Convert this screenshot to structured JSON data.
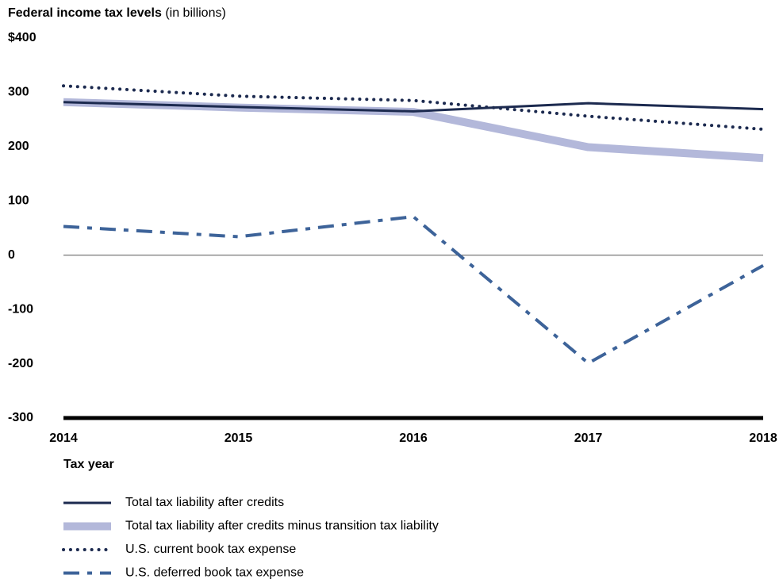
{
  "chart_data": {
    "type": "line",
    "title": "Federal income tax levels",
    "subtitle": "(in billions)",
    "x_label": "Tax year",
    "x": [
      2014,
      2015,
      2016,
      2017,
      2018
    ],
    "xlim": [
      2014,
      2018
    ],
    "xticks": [
      2014,
      2015,
      2016,
      2017,
      2018
    ],
    "ylim": [
      -300,
      400
    ],
    "yticks": [
      {
        "value": 400,
        "label": "$400"
      },
      300,
      200,
      100,
      0,
      -100,
      -200,
      -300
    ],
    "grid": false,
    "legend": "bottom",
    "series": [
      {
        "name": "Total tax liability after credits",
        "color": "#1c2a4f",
        "style": "solid",
        "width": 3,
        "values": [
          282,
          273,
          265,
          280,
          269
        ]
      },
      {
        "name": "Total tax liability after credits minus transition tax liability",
        "color": "#b3b8da",
        "style": "solid",
        "width": 10,
        "values": [
          282,
          272,
          264,
          199,
          179
        ]
      },
      {
        "name": "U.S. current book tax expense",
        "color": "#1c2a4f",
        "style": "dotted",
        "width": 4,
        "values": [
          312,
          293,
          285,
          256,
          232
        ]
      },
      {
        "name": "U.S. deferred book tax expense",
        "color": "#3d6399",
        "style": "dashdot",
        "width": 4,
        "values": [
          53,
          34,
          71,
          -199,
          -19
        ]
      }
    ]
  }
}
